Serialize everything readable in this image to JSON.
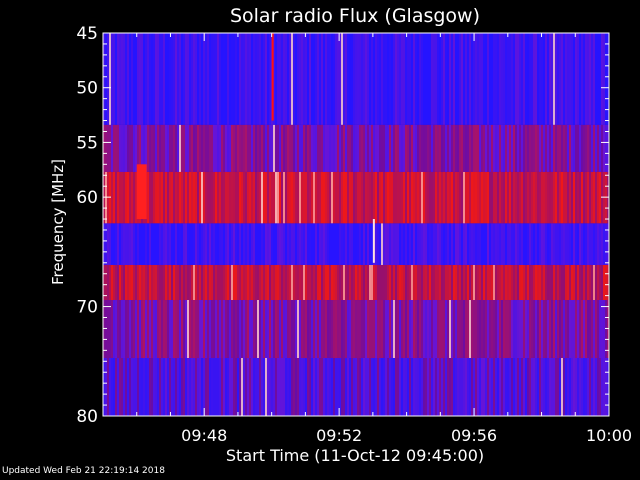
{
  "chart_data": {
    "type": "heatmap",
    "title": "Solar radio Flux (Glasgow)",
    "xlabel": "Start Time (11-Oct-12 09:45:00)",
    "ylabel": "Frequency [MHz]",
    "x_range": [
      "09:45",
      "10:00"
    ],
    "x_ticks": [
      "09:48",
      "09:52",
      "09:56",
      "10:00"
    ],
    "y_range": [
      45,
      80
    ],
    "y_ticks": [
      45,
      50,
      55,
      60,
      70,
      80
    ],
    "y_axis_orientation": "inverted (45 at top, 80 at bottom)",
    "colormap": "blue (low) to red/white (high)",
    "bands": [
      {
        "freq_mhz": [
          45.0,
          53.4
        ],
        "mean_intensity": "low",
        "dominant_color": "#1a1aff"
      },
      {
        "freq_mhz": [
          53.4,
          57.7
        ],
        "mean_intensity": "medium",
        "dominant_color": "#5a1ad0"
      },
      {
        "freq_mhz": [
          57.7,
          62.4
        ],
        "mean_intensity": "high",
        "dominant_color": "#c01020"
      },
      {
        "freq_mhz": [
          62.4,
          66.2
        ],
        "mean_intensity": "low",
        "dominant_color": "#2a1aff"
      },
      {
        "freq_mhz": [
          66.2,
          69.4
        ],
        "mean_intensity": "high",
        "dominant_color": "#a0102a"
      },
      {
        "freq_mhz": [
          69.4,
          74.7
        ],
        "mean_intensity": "medium",
        "dominant_color": "#6a18b0"
      },
      {
        "freq_mhz": [
          74.7,
          80.0
        ],
        "mean_intensity": "low-medium",
        "dominant_color": "#3a1ae0"
      }
    ],
    "notable_features": [
      {
        "time": "09:50",
        "freq_mhz": [
          45,
          53
        ],
        "description": "bright red vertical streak"
      },
      {
        "time": "09:53",
        "freq_mhz": [
          62,
          66
        ],
        "description": "bright white vertical streak"
      },
      {
        "time": "09:46",
        "freq_mhz": [
          57,
          62
        ],
        "description": "intense red region"
      }
    ],
    "grid": false,
    "legend": "none"
  },
  "footer": {
    "updated": "Updated Wed Feb 21 22:19:14 2018"
  }
}
